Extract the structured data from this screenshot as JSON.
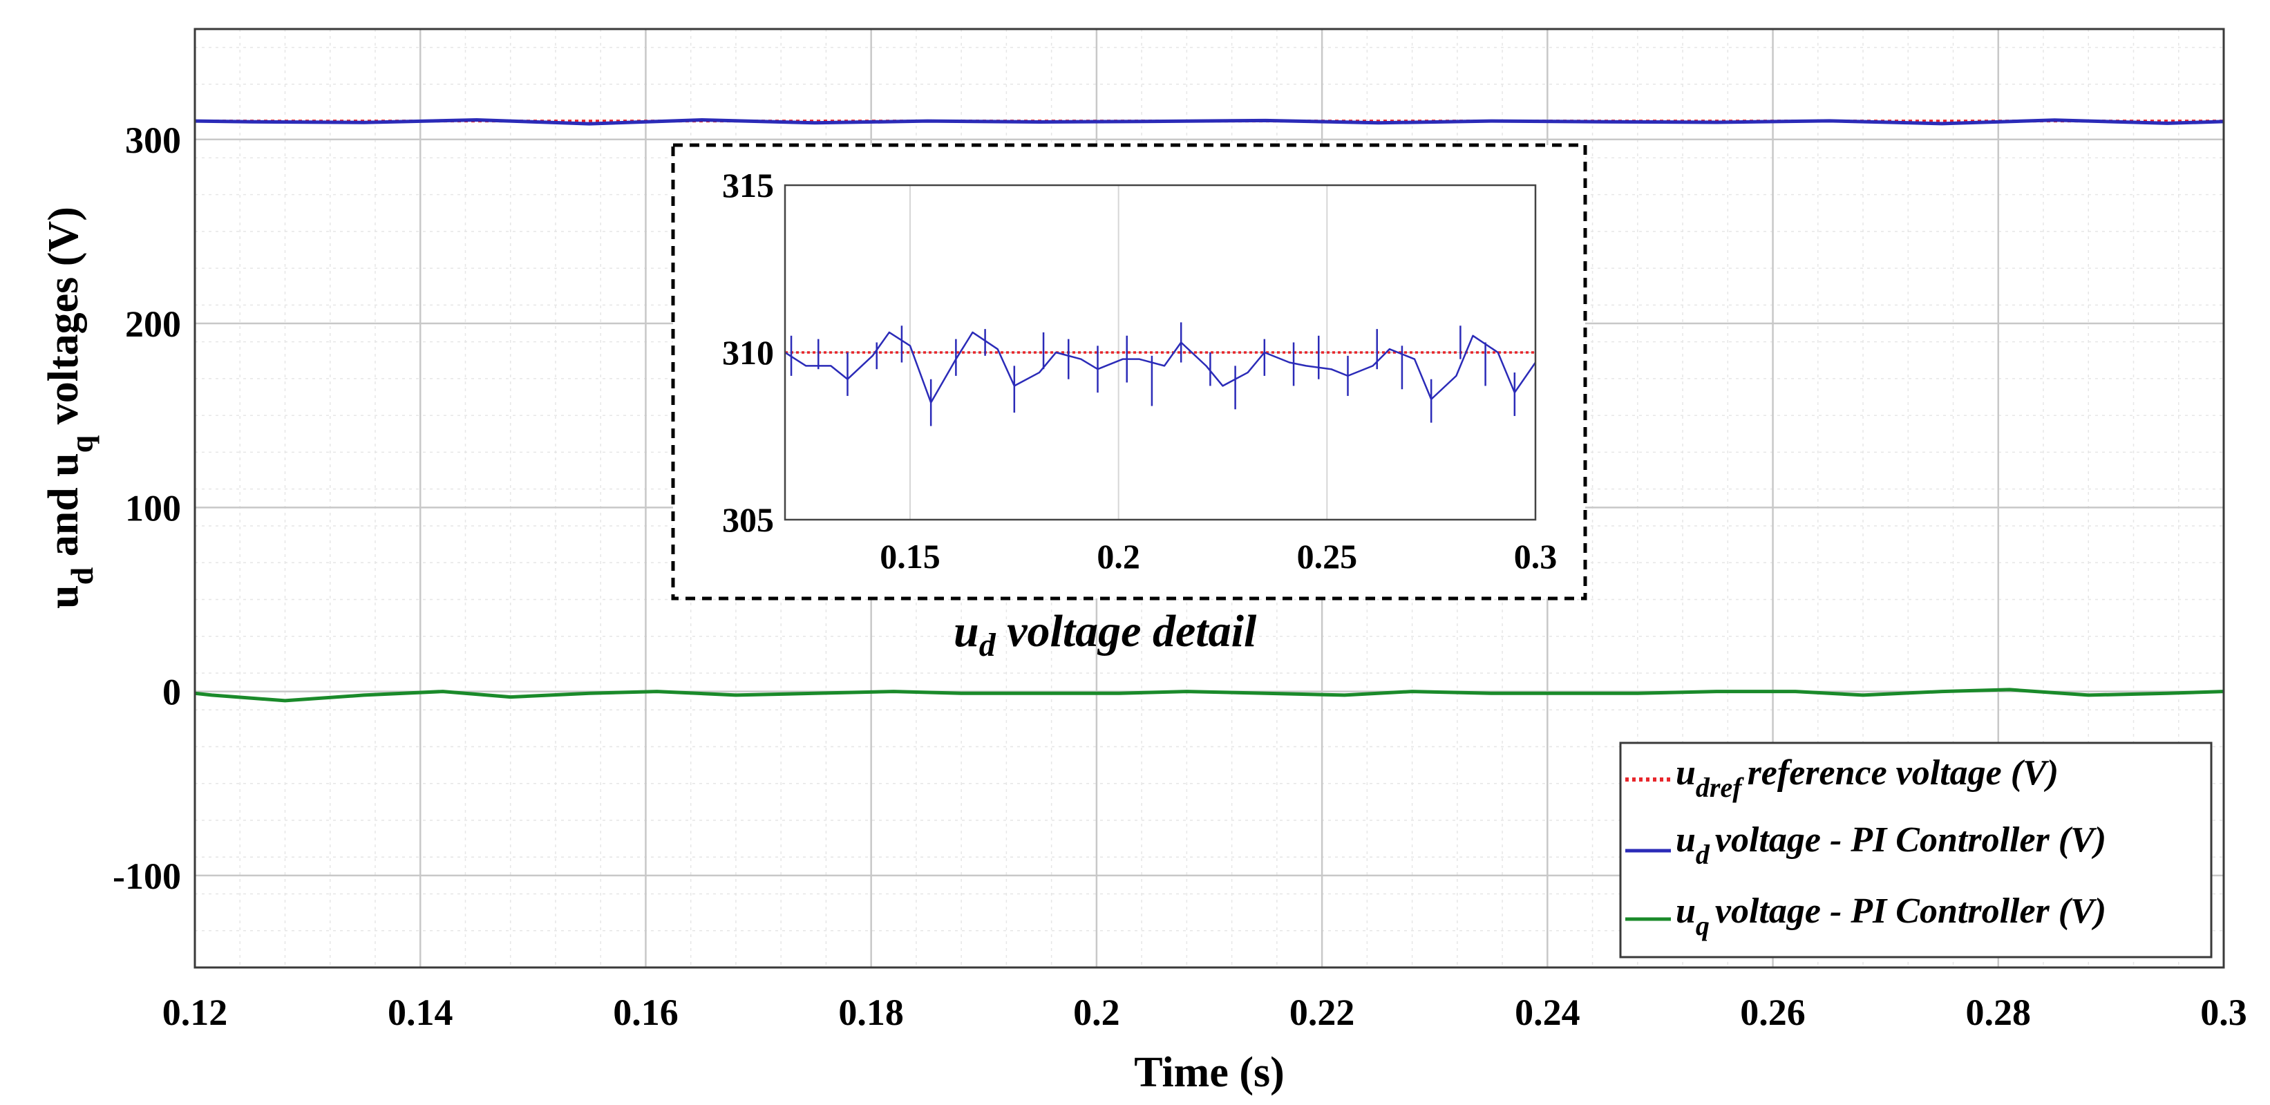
{
  "chart_data": [
    {
      "type": "line",
      "xlabel": "Time (s)",
      "ylabel": {
        "p1": "u",
        "s1": "d",
        "p2": " and u",
        "s2": "q",
        "p3": " voltages (V)"
      },
      "xlim": [
        0.12,
        0.3
      ],
      "ylim": [
        -150,
        360
      ],
      "xticks": [
        "0.12",
        "0.14",
        "0.16",
        "0.18",
        "0.2",
        "0.22",
        "0.24",
        "0.26",
        "0.28",
        "0.3"
      ],
      "yticks": [
        "300",
        "200",
        "100",
        "0",
        "-100"
      ],
      "ytick_values": [
        300,
        200,
        100,
        0,
        -100
      ],
      "grid": true,
      "minor_grid": true,
      "legend_position": "bottom-right",
      "series": [
        {
          "key": "udref",
          "name": {
            "base": "u",
            "sub": "dref",
            "text": "reference voltage (V)"
          },
          "color": "#e8262b",
          "style": "dotted",
          "x": [
            0.12,
            0.3
          ],
          "values": [
            310,
            310
          ]
        },
        {
          "key": "ud",
          "name": {
            "base": "u",
            "sub": "d",
            "text": "voltage - PI Controller (V)"
          },
          "color": "#2b2bb8",
          "style": "solid",
          "x": [
            0.12,
            0.125,
            0.135,
            0.145,
            0.155,
            0.165,
            0.175,
            0.185,
            0.195,
            0.205,
            0.215,
            0.225,
            0.235,
            0.245,
            0.255,
            0.265,
            0.275,
            0.285,
            0.295,
            0.3
          ],
          "values": [
            310,
            309.6,
            309.2,
            310.6,
            308.5,
            310.6,
            309.0,
            310.0,
            309.5,
            309.8,
            310.3,
            309.0,
            310.0,
            309.6,
            309.3,
            310.1,
            308.6,
            310.5,
            308.8,
            309.7
          ]
        },
        {
          "key": "uq",
          "name": {
            "base": "u",
            "sub": "q",
            "text": "voltage - PI Controller (V)"
          },
          "color": "#1a8a2a",
          "style": "solid",
          "x": [
            0.12,
            0.1215,
            0.128,
            0.135,
            0.142,
            0.148,
            0.155,
            0.161,
            0.168,
            0.175,
            0.182,
            0.188,
            0.195,
            0.202,
            0.208,
            0.215,
            0.222,
            0.228,
            0.235,
            0.242,
            0.248,
            0.255,
            0.262,
            0.268,
            0.275,
            0.281,
            0.288,
            0.295,
            0.3
          ],
          "values": [
            -1,
            -2,
            -5,
            -2,
            0,
            -3,
            -1,
            0,
            -2,
            -1,
            0,
            -1,
            -1,
            -1,
            0,
            -1,
            -2,
            0,
            -1,
            -1,
            -1,
            0,
            0,
            -2,
            0,
            1,
            -2,
            -1,
            0
          ]
        }
      ]
    },
    {
      "type": "line",
      "title": {
        "base": "u",
        "sub": "d",
        "text": " voltage detail"
      },
      "xlim": [
        0.12,
        0.3
      ],
      "ylim": [
        305,
        315
      ],
      "xticks": [
        "0.15",
        "0.2",
        "0.25",
        "0.3"
      ],
      "xtick_values": [
        0.15,
        0.2,
        0.25,
        0.3
      ],
      "yticks": [
        "315",
        "310",
        "305"
      ],
      "ytick_values": [
        315,
        310,
        305
      ],
      "grid": true,
      "series": [
        {
          "key": "udref",
          "color": "#e8262b",
          "style": "dotted",
          "x": [
            0.12,
            0.3
          ],
          "values": [
            310,
            310
          ]
        },
        {
          "key": "ud",
          "color": "#2b2bb8",
          "style": "solid",
          "x": [
            0.12,
            0.125,
            0.131,
            0.135,
            0.141,
            0.145,
            0.15,
            0.155,
            0.161,
            0.165,
            0.171,
            0.175,
            0.181,
            0.185,
            0.191,
            0.195,
            0.201,
            0.205,
            0.211,
            0.215,
            0.221,
            0.225,
            0.231,
            0.235,
            0.241,
            0.245,
            0.251,
            0.255,
            0.261,
            0.265,
            0.271,
            0.275,
            0.281,
            0.285,
            0.291,
            0.295,
            0.3
          ],
          "values": [
            310.0,
            309.6,
            309.6,
            309.2,
            309.9,
            310.6,
            310.2,
            308.5,
            309.8,
            310.6,
            310.1,
            309.0,
            309.4,
            310.0,
            309.8,
            309.5,
            309.8,
            309.8,
            309.6,
            310.3,
            309.6,
            309.0,
            309.4,
            310.0,
            309.7,
            309.6,
            309.5,
            309.3,
            309.6,
            310.1,
            309.8,
            308.6,
            309.3,
            310.5,
            310.0,
            308.8,
            309.7
          ]
        }
      ],
      "spikes": [
        {
          "x": 0.1215,
          "lo": 309.3,
          "hi": 310.5
        },
        {
          "x": 0.128,
          "lo": 309.5,
          "hi": 310.4
        },
        {
          "x": 0.135,
          "lo": 308.7,
          "hi": 310.0
        },
        {
          "x": 0.142,
          "lo": 309.5,
          "hi": 310.3
        },
        {
          "x": 0.148,
          "lo": 309.7,
          "hi": 310.8
        },
        {
          "x": 0.155,
          "lo": 307.8,
          "hi": 309.2
        },
        {
          "x": 0.161,
          "lo": 309.3,
          "hi": 310.4
        },
        {
          "x": 0.168,
          "lo": 309.9,
          "hi": 310.7
        },
        {
          "x": 0.175,
          "lo": 308.2,
          "hi": 309.6
        },
        {
          "x": 0.182,
          "lo": 309.5,
          "hi": 310.6
        },
        {
          "x": 0.188,
          "lo": 309.2,
          "hi": 310.4
        },
        {
          "x": 0.195,
          "lo": 308.8,
          "hi": 310.2
        },
        {
          "x": 0.202,
          "lo": 309.1,
          "hi": 310.5
        },
        {
          "x": 0.208,
          "lo": 308.4,
          "hi": 309.9
        },
        {
          "x": 0.215,
          "lo": 309.7,
          "hi": 310.9
        },
        {
          "x": 0.222,
          "lo": 309.0,
          "hi": 310.0
        },
        {
          "x": 0.228,
          "lo": 308.3,
          "hi": 309.6
        },
        {
          "x": 0.235,
          "lo": 309.3,
          "hi": 310.4
        },
        {
          "x": 0.242,
          "lo": 309.0,
          "hi": 310.3
        },
        {
          "x": 0.248,
          "lo": 309.2,
          "hi": 310.5
        },
        {
          "x": 0.255,
          "lo": 308.7,
          "hi": 309.9
        },
        {
          "x": 0.262,
          "lo": 309.5,
          "hi": 310.7
        },
        {
          "x": 0.268,
          "lo": 308.9,
          "hi": 310.2
        },
        {
          "x": 0.275,
          "lo": 307.9,
          "hi": 309.2
        },
        {
          "x": 0.282,
          "lo": 309.8,
          "hi": 310.8
        },
        {
          "x": 0.288,
          "lo": 309.0,
          "hi": 310.3
        },
        {
          "x": 0.295,
          "lo": 308.1,
          "hi": 309.4
        }
      ]
    }
  ]
}
